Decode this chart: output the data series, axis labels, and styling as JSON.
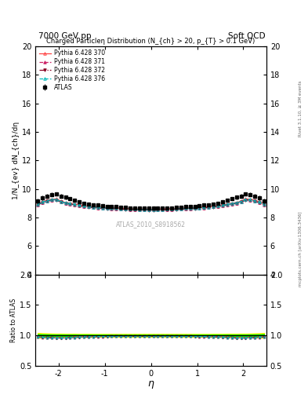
{
  "title_top_left": "7000 GeV pp",
  "title_top_right": "Soft QCD",
  "main_title": "Charged Particleη Distribution (N_{ch} > 20, p_{T} > 0.1 GeV)",
  "xlabel": "η",
  "ylabel_main": "1/N_{ev} dN_{ch}/dη",
  "ylabel_ratio": "Ratio to ATLAS",
  "right_label_top": "Rivet 3.1.10, ≥ 3M events",
  "right_label_bottom": "mcplots.cern.ch [arXiv:1306.3436]",
  "watermark": "ATLAS_2010_S8918562",
  "eta_min": -2.5,
  "eta_max": 2.5,
  "ylim_main": [
    4,
    20
  ],
  "ylim_ratio": [
    0.5,
    2.0
  ],
  "data_eta": [
    -2.45,
    -2.35,
    -2.25,
    -2.15,
    -2.05,
    -1.95,
    -1.85,
    -1.75,
    -1.65,
    -1.55,
    -1.45,
    -1.35,
    -1.25,
    -1.15,
    -1.05,
    -0.95,
    -0.85,
    -0.75,
    -0.65,
    -0.55,
    -0.45,
    -0.35,
    -0.25,
    -0.15,
    -0.05,
    0.05,
    0.15,
    0.25,
    0.35,
    0.45,
    0.55,
    0.65,
    0.75,
    0.85,
    0.95,
    1.05,
    1.15,
    1.25,
    1.35,
    1.45,
    1.55,
    1.65,
    1.75,
    1.85,
    1.95,
    2.05,
    2.15,
    2.25,
    2.35,
    2.45
  ],
  "atlas_values": [
    9.15,
    9.35,
    9.5,
    9.6,
    9.65,
    9.5,
    9.4,
    9.3,
    9.2,
    9.1,
    9.0,
    8.95,
    8.9,
    8.85,
    8.82,
    8.78,
    8.75,
    8.75,
    8.72,
    8.7,
    8.68,
    8.67,
    8.65,
    8.64,
    8.63,
    8.63,
    8.64,
    8.65,
    8.67,
    8.68,
    8.7,
    8.72,
    8.75,
    8.75,
    8.78,
    8.82,
    8.85,
    8.9,
    8.95,
    9.0,
    9.1,
    9.2,
    9.3,
    9.4,
    9.5,
    9.65,
    9.6,
    9.5,
    9.35,
    9.15
  ],
  "atlas_err": [
    0.18,
    0.16,
    0.15,
    0.14,
    0.13,
    0.13,
    0.12,
    0.12,
    0.12,
    0.11,
    0.11,
    0.11,
    0.1,
    0.1,
    0.1,
    0.1,
    0.1,
    0.1,
    0.1,
    0.1,
    0.1,
    0.1,
    0.1,
    0.1,
    0.1,
    0.1,
    0.1,
    0.1,
    0.1,
    0.1,
    0.1,
    0.1,
    0.1,
    0.1,
    0.1,
    0.1,
    0.1,
    0.1,
    0.11,
    0.11,
    0.11,
    0.12,
    0.12,
    0.12,
    0.13,
    0.13,
    0.14,
    0.15,
    0.16,
    0.18
  ],
  "pythia_370_values": [
    8.95,
    9.1,
    9.2,
    9.28,
    9.3,
    9.15,
    9.05,
    9.0,
    8.95,
    8.88,
    8.83,
    8.79,
    8.76,
    8.73,
    8.71,
    8.69,
    8.67,
    8.67,
    8.65,
    8.63,
    8.62,
    8.61,
    8.6,
    8.59,
    8.58,
    8.58,
    8.59,
    8.6,
    8.61,
    8.62,
    8.63,
    8.65,
    8.67,
    8.67,
    8.69,
    8.71,
    8.73,
    8.76,
    8.79,
    8.83,
    8.88,
    8.95,
    9.0,
    9.05,
    9.15,
    9.3,
    9.28,
    9.2,
    9.1,
    8.95
  ],
  "pythia_371_values": [
    8.9,
    9.05,
    9.15,
    9.22,
    9.24,
    9.1,
    9.0,
    8.95,
    8.9,
    8.83,
    8.78,
    8.74,
    8.71,
    8.68,
    8.66,
    8.64,
    8.62,
    8.62,
    8.6,
    8.58,
    8.57,
    8.56,
    8.55,
    8.54,
    8.53,
    8.53,
    8.54,
    8.55,
    8.56,
    8.57,
    8.58,
    8.6,
    8.62,
    8.62,
    8.64,
    8.66,
    8.68,
    8.71,
    8.74,
    8.78,
    8.83,
    8.9,
    8.95,
    9.0,
    9.1,
    9.24,
    9.22,
    9.15,
    9.05,
    8.9
  ],
  "pythia_372_values": [
    8.88,
    9.03,
    9.13,
    9.2,
    9.22,
    9.08,
    8.98,
    8.93,
    8.88,
    8.81,
    8.76,
    8.72,
    8.69,
    8.66,
    8.64,
    8.62,
    8.6,
    8.6,
    8.58,
    8.56,
    8.55,
    8.54,
    8.53,
    8.52,
    8.51,
    8.51,
    8.52,
    8.53,
    8.54,
    8.55,
    8.56,
    8.58,
    8.6,
    8.6,
    8.62,
    8.64,
    8.66,
    8.69,
    8.72,
    8.76,
    8.81,
    8.88,
    8.93,
    8.98,
    9.08,
    9.22,
    9.2,
    9.13,
    9.03,
    8.88
  ],
  "pythia_376_values": [
    8.92,
    9.07,
    9.17,
    9.24,
    9.26,
    9.12,
    9.02,
    8.97,
    8.92,
    8.85,
    8.8,
    8.76,
    8.73,
    8.7,
    8.68,
    8.66,
    8.64,
    8.64,
    8.62,
    8.6,
    8.59,
    8.58,
    8.57,
    8.56,
    8.55,
    8.55,
    8.56,
    8.57,
    8.58,
    8.59,
    8.6,
    8.62,
    8.64,
    8.64,
    8.66,
    8.68,
    8.7,
    8.73,
    8.76,
    8.8,
    8.85,
    8.92,
    8.97,
    9.02,
    9.12,
    9.26,
    9.24,
    9.17,
    9.07,
    8.92
  ],
  "color_atlas": "#000000",
  "color_370": "#FF4444",
  "color_371": "#CC2266",
  "color_372": "#880022",
  "color_376": "#00BBBB",
  "ratio_band_color_yellow": "#FFFF00",
  "ratio_band_color_green": "#00CC00",
  "yticks_main": [
    4,
    6,
    8,
    10,
    12,
    14,
    16,
    18,
    20
  ],
  "yticks_ratio": [
    0.5,
    1.0,
    1.5,
    2.0
  ],
  "xticks": [
    -2,
    -1,
    0,
    1,
    2
  ]
}
